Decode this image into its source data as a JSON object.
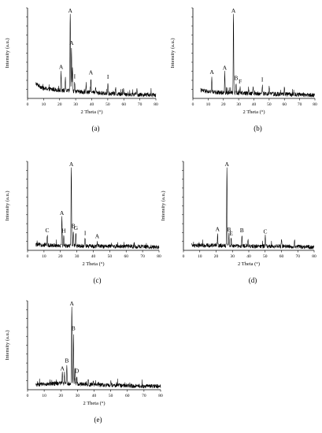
{
  "figure": {
    "panels": [
      {
        "label": "(a)",
        "ylabel": "Intensity (a.u.)",
        "xlabel": "2 Theta (°)"
      },
      {
        "label": "(b)",
        "ylabel": "Intensity (a.u.)",
        "xlabel": "2 Theta (°)"
      },
      {
        "label": "(c)",
        "ylabel": "Intensity (a.u.)",
        "xlabel": "2 Theta (°)"
      },
      {
        "label": "(d)",
        "ylabel": "Intensity (a.u.)",
        "xlabel": "2 Theta (°)"
      },
      {
        "label": "(e)",
        "ylabel": "Intensity (a.u.)",
        "xlabel": "2 Theta (°)"
      }
    ]
  },
  "chart_data": [
    {
      "type": "line",
      "panel": "(a)",
      "xlabel": "2 Theta (°)",
      "ylabel": "Intensity (a.u.)",
      "xlim": [
        0,
        80
      ],
      "xticks": [
        0,
        10,
        20,
        30,
        40,
        50,
        60,
        70,
        80
      ],
      "grid": false,
      "baseline": [
        [
          5,
          0.18
        ],
        [
          10,
          0.12
        ],
        [
          20,
          0.1
        ],
        [
          40,
          0.07
        ],
        [
          60,
          0.05
        ],
        [
          80,
          0.04
        ]
      ],
      "peaks": [
        [
          20.9,
          0.22
        ],
        [
          23.6,
          0.14
        ],
        [
          26.6,
          1.0
        ],
        [
          27.4,
          0.52
        ],
        [
          28.0,
          0.3
        ],
        [
          29.4,
          0.12
        ],
        [
          36.5,
          0.1
        ],
        [
          39.5,
          0.18
        ],
        [
          42.5,
          0.07
        ],
        [
          50.1,
          0.14
        ],
        [
          54.9,
          0.07
        ],
        [
          59.9,
          0.08
        ],
        [
          68.2,
          0.06
        ]
      ],
      "annotations": [
        {
          "text": "A",
          "x": 26.6
        },
        {
          "text": "A",
          "x": 20.9
        },
        {
          "text": "A",
          "x": 27.4
        },
        {
          "text": "I",
          "x": 29.4
        },
        {
          "text": "A",
          "x": 39.5
        },
        {
          "text": "I",
          "x": 50.1
        }
      ]
    },
    {
      "type": "line",
      "panel": "(b)",
      "xlabel": "2 Theta (°)",
      "ylabel": "Intensity (a.u.)",
      "xlim": [
        0,
        80
      ],
      "xticks": [
        0,
        10,
        20,
        30,
        40,
        50,
        60,
        70,
        80
      ],
      "grid": false,
      "baseline": [
        [
          5,
          0.1
        ],
        [
          10,
          0.08
        ],
        [
          20,
          0.07
        ],
        [
          40,
          0.06
        ],
        [
          60,
          0.05
        ],
        [
          80,
          0.04
        ]
      ],
      "peaks": [
        [
          12.4,
          0.18
        ],
        [
          20.9,
          0.24
        ],
        [
          26.6,
          1.0
        ],
        [
          28.3,
          0.12
        ],
        [
          31.0,
          0.08
        ],
        [
          36.5,
          0.08
        ],
        [
          39.5,
          0.09
        ],
        [
          45.5,
          0.11
        ],
        [
          50.1,
          0.09
        ],
        [
          60.0,
          0.08
        ]
      ],
      "annotations": [
        {
          "text": "A",
          "x": 26.6
        },
        {
          "text": "A",
          "x": 12.4
        },
        {
          "text": "A",
          "x": 20.9
        },
        {
          "text": "B",
          "x": 28.3
        },
        {
          "text": "F",
          "x": 31.0
        },
        {
          "text": "I",
          "x": 45.5
        }
      ]
    },
    {
      "type": "line",
      "panel": "(c)",
      "xlabel": "2 Theta (°)",
      "ylabel": "Intensity (a.u.)",
      "xlim": [
        0,
        80
      ],
      "xticks": [
        0,
        10,
        20,
        30,
        40,
        50,
        60,
        70,
        80
      ],
      "grid": false,
      "baseline": [
        [
          5,
          0.07
        ],
        [
          20,
          0.06
        ],
        [
          40,
          0.05
        ],
        [
          60,
          0.05
        ],
        [
          80,
          0.04
        ]
      ],
      "peaks": [
        [
          12.0,
          0.12
        ],
        [
          20.9,
          0.34
        ],
        [
          22.0,
          0.12
        ],
        [
          26.6,
          1.0
        ],
        [
          27.9,
          0.18
        ],
        [
          29.4,
          0.16
        ],
        [
          35.0,
          0.1
        ],
        [
          42.4,
          0.06
        ]
      ],
      "annotations": [
        {
          "text": "A",
          "x": 26.6
        },
        {
          "text": "C",
          "x": 12.0
        },
        {
          "text": "A",
          "x": 20.9
        },
        {
          "text": "H",
          "x": 22.0
        },
        {
          "text": "B",
          "x": 27.9
        },
        {
          "text": "G",
          "x": 29.4
        },
        {
          "text": "I",
          "x": 35.0
        },
        {
          "text": "A",
          "x": 42.4
        }
      ]
    },
    {
      "type": "line",
      "panel": "(d)",
      "xlabel": "2 Theta (°)",
      "ylabel": "Intensity (a.u.)",
      "xlim": [
        0,
        80
      ],
      "xticks": [
        0,
        10,
        20,
        30,
        40,
        50,
        60,
        70,
        80
      ],
      "grid": false,
      "baseline": [
        [
          5,
          0.06
        ],
        [
          20,
          0.06
        ],
        [
          40,
          0.05
        ],
        [
          60,
          0.05
        ],
        [
          80,
          0.04
        ]
      ],
      "peaks": [
        [
          20.9,
          0.14
        ],
        [
          26.6,
          1.0
        ],
        [
          27.9,
          0.14
        ],
        [
          29.2,
          0.09
        ],
        [
          35.8,
          0.13
        ],
        [
          39.5,
          0.08
        ],
        [
          50.1,
          0.12
        ],
        [
          60.0,
          0.09
        ],
        [
          68.0,
          0.08
        ]
      ],
      "annotations": [
        {
          "text": "A",
          "x": 26.6
        },
        {
          "text": "A",
          "x": 20.9
        },
        {
          "text": "B",
          "x": 27.9
        },
        {
          "text": "E",
          "x": 29.2
        },
        {
          "text": "B",
          "x": 35.8
        },
        {
          "text": "C",
          "x": 50.1
        }
      ]
    },
    {
      "type": "line",
      "panel": "(e)",
      "xlabel": "2 Theta (°)",
      "ylabel": "Intensity (a.u.)",
      "xlim": [
        0,
        80
      ],
      "xticks": [
        0,
        10,
        20,
        30,
        40,
        50,
        60,
        70,
        80
      ],
      "grid": false,
      "baseline": [
        [
          5,
          0.06
        ],
        [
          20,
          0.08
        ],
        [
          40,
          0.06
        ],
        [
          60,
          0.05
        ],
        [
          80,
          0.04
        ]
      ],
      "peaks": [
        [
          20.9,
          0.12
        ],
        [
          22.2,
          0.14
        ],
        [
          23.6,
          0.22
        ],
        [
          26.6,
          1.0
        ],
        [
          27.6,
          0.62
        ],
        [
          28.5,
          0.2
        ],
        [
          29.6,
          0.1
        ],
        [
          36.5,
          0.06
        ],
        [
          39.5,
          0.06
        ],
        [
          50.1,
          0.06
        ]
      ],
      "annotations": [
        {
          "text": "A",
          "x": 26.6
        },
        {
          "text": "B",
          "x": 27.6
        },
        {
          "text": "B",
          "x": 23.6
        },
        {
          "text": "A",
          "x": 20.9
        },
        {
          "text": "D",
          "x": 29.6
        }
      ]
    }
  ]
}
